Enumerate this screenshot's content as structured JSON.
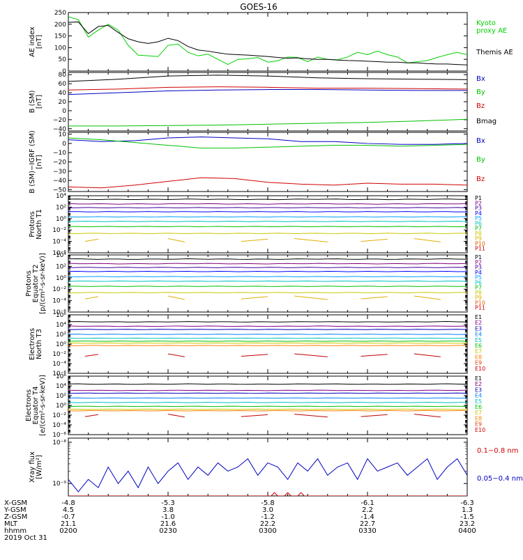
{
  "title": "GOES-16",
  "date_label": "2019 Oct 31",
  "orbit_labels": [
    "X-GSM",
    "Y-GSM",
    "Z-GSM",
    "MLT",
    "hhmm"
  ],
  "orbit_columns": [
    {
      "time": "0200",
      "x": "-4.8",
      "y": "4.5",
      "z": "-0.7",
      "mlt": "21.1"
    },
    {
      "time": "0230",
      "x": "-5.3",
      "y": "3.8",
      "z": "-1.0",
      "mlt": "21.6"
    },
    {
      "time": "0300",
      "x": "-5.8",
      "y": "3.0",
      "z": "-1.2",
      "mlt": "22.2"
    },
    {
      "time": "0330",
      "x": "-6.1",
      "y": "2.2",
      "z": "-1.4",
      "mlt": "22.7"
    },
    {
      "time": "0400",
      "x": "-6.3",
      "y": "1.3",
      "z": "-1.5",
      "mlt": "23.2"
    }
  ],
  "chart_data": [
    {
      "type": "line",
      "id": "ae",
      "ylabel": [
        "AE index",
        "[nT]"
      ],
      "ylim": [
        0,
        250
      ],
      "ticks": [
        {
          "v": 0,
          "label": "0"
        },
        {
          "v": 50,
          "label": "50"
        },
        {
          "v": 100,
          "label": "100"
        },
        {
          "v": 150,
          "label": "150"
        },
        {
          "v": 200,
          "label": "200"
        },
        {
          "v": 250,
          "label": "250"
        }
      ],
      "series": [
        {
          "name": "Kyoto proxy AE",
          "legend": [
            "Kyoto",
            "proxy AE"
          ],
          "color": "#00d000",
          "x": [
            0,
            3,
            6,
            9,
            12,
            15,
            18,
            21,
            24,
            27,
            30,
            33,
            36,
            39,
            42,
            45,
            48,
            51,
            54,
            57,
            60,
            63,
            66,
            69,
            72,
            75,
            78,
            81,
            84,
            87,
            90,
            93,
            96,
            99,
            102,
            105,
            108,
            111,
            114,
            117,
            120
          ],
          "y": [
            232,
            220,
            145,
            175,
            200,
            175,
            110,
            68,
            65,
            62,
            110,
            115,
            80,
            65,
            72,
            50,
            28,
            50,
            52,
            58,
            38,
            44,
            60,
            58,
            40,
            60,
            50,
            48,
            60,
            80,
            70,
            85,
            70,
            60,
            35,
            40,
            45,
            58,
            70,
            80,
            70
          ]
        },
        {
          "name": "Themis AE",
          "legend": [
            "Themis AE"
          ],
          "color": "#000000",
          "x": [
            0,
            3,
            6,
            9,
            12,
            15,
            18,
            21,
            24,
            27,
            30,
            33,
            36,
            39,
            42,
            45,
            48,
            51,
            54,
            57,
            60,
            63,
            66,
            69,
            72,
            75,
            78,
            81,
            84,
            87,
            90,
            93,
            96,
            99,
            102,
            105,
            108,
            111,
            114,
            117,
            120
          ],
          "y": [
            208,
            210,
            160,
            190,
            195,
            165,
            138,
            125,
            118,
            125,
            140,
            130,
            105,
            90,
            85,
            78,
            72,
            70,
            68,
            65,
            62,
            58,
            55,
            56,
            52,
            50,
            50,
            47,
            45,
            44,
            42,
            40,
            38,
            38,
            35,
            35,
            32,
            30,
            30,
            28,
            26
          ]
        }
      ]
    },
    {
      "type": "line",
      "id": "bsm",
      "ylabel": [
        "B (SM)",
        "[nT]"
      ],
      "ylim": [
        -45,
        85
      ],
      "ticks": [
        {
          "v": -40,
          "label": "−40"
        },
        {
          "v": -20,
          "label": "−20"
        },
        {
          "v": 0,
          "label": "0"
        },
        {
          "v": 20,
          "label": "20"
        },
        {
          "v": 40,
          "label": "40"
        },
        {
          "v": 60,
          "label": "60"
        },
        {
          "v": 80,
          "label": "80"
        }
      ],
      "series": [
        {
          "name": "Bx",
          "legend": [
            "Bx"
          ],
          "color": "#0000c0",
          "x": [
            0,
            15,
            30,
            45,
            60,
            75,
            90,
            105,
            120
          ],
          "y": [
            36,
            40,
            44,
            46,
            47,
            47,
            46,
            45,
            45
          ]
        },
        {
          "name": "By",
          "legend": [
            "By"
          ],
          "color": "#00c000",
          "x": [
            0,
            15,
            30,
            45,
            60,
            75,
            90,
            105,
            120
          ],
          "y": [
            -34,
            -34,
            -33,
            -32,
            -30,
            -28,
            -26,
            -23,
            -19
          ]
        },
        {
          "name": "Bz",
          "legend": [
            "Bz"
          ],
          "color": "#d00000",
          "x": [
            0,
            15,
            30,
            45,
            60,
            75,
            90,
            105,
            120
          ],
          "y": [
            46,
            48,
            52,
            53,
            52,
            50,
            50,
            49,
            48
          ]
        },
        {
          "name": "Bmag",
          "legend": [
            "Bmag"
          ],
          "color": "#000000",
          "x": [
            0,
            15,
            30,
            45,
            60,
            75,
            90,
            105,
            120
          ],
          "y": [
            65,
            70,
            77,
            79,
            77,
            73,
            71,
            70,
            69
          ]
        }
      ]
    },
    {
      "type": "line",
      "id": "bigrf",
      "ylabel": [
        "B (SM)−IGRF (SM)",
        "[nT]"
      ],
      "ylim": [
        -52,
        12
      ],
      "ticks": [
        {
          "v": -50,
          "label": "−50"
        },
        {
          "v": -40,
          "label": "−40"
        },
        {
          "v": -30,
          "label": "−30"
        },
        {
          "v": -20,
          "label": "−20"
        },
        {
          "v": -10,
          "label": "−10"
        },
        {
          "v": 0,
          "label": "0"
        },
        {
          "v": 10,
          "label": "10"
        }
      ],
      "series": [
        {
          "name": "Bx",
          "legend": [
            "Bx"
          ],
          "color": "#0000c0",
          "x": [
            0,
            10,
            20,
            30,
            40,
            50,
            60,
            70,
            80,
            90,
            100,
            110,
            120
          ],
          "y": [
            4,
            2,
            3,
            6,
            7,
            6,
            5,
            2,
            2,
            0,
            -1,
            -1,
            0
          ]
        },
        {
          "name": "By",
          "legend": [
            "By"
          ],
          "color": "#00c000",
          "x": [
            0,
            10,
            20,
            30,
            40,
            50,
            60,
            70,
            80,
            90,
            100,
            110,
            120
          ],
          "y": [
            6,
            4,
            1,
            -2,
            -5,
            -5,
            -4,
            -3,
            -2,
            -2,
            -3,
            -2,
            -1
          ]
        },
        {
          "name": "Bz",
          "legend": [
            "Bz"
          ],
          "color": "#d00000",
          "x": [
            0,
            10,
            20,
            30,
            40,
            50,
            60,
            70,
            80,
            90,
            100,
            110,
            120
          ],
          "y": [
            -47,
            -48,
            -45,
            -41,
            -37,
            -38,
            -42,
            -44,
            -45,
            -43,
            -44,
            -44,
            -45
          ]
        }
      ]
    },
    {
      "type": "line",
      "id": "protons_t1",
      "log": true,
      "ylabel": [
        "Protons",
        "North T1"
      ],
      "ylim": [
        -6,
        4
      ],
      "ticks": [
        {
          "v": -6,
          "label": "10⁻⁶"
        },
        {
          "v": -4,
          "label": "10⁻⁴"
        },
        {
          "v": -2,
          "label": "10⁻²"
        },
        {
          "v": 0,
          "label": "10⁰"
        },
        {
          "v": 2,
          "label": "10²"
        },
        {
          "v": 4,
          "label": "10⁴"
        }
      ],
      "legend_labels": [
        "P1",
        "P2",
        "P3",
        "P4",
        "P5",
        "P6",
        "P7",
        "P8",
        "P9",
        "P10",
        "P11"
      ],
      "series": [
        {
          "name": "P1",
          "color": "#000000",
          "level": 3.4
        },
        {
          "name": "P2",
          "color": "#800080",
          "level": 2.6
        },
        {
          "name": "P3",
          "color": "#4000a0",
          "level": 1.9
        },
        {
          "name": "P4",
          "color": "#0000ff",
          "level": 1.2
        },
        {
          "name": "P5",
          "color": "#00a0ff",
          "level": 0.3
        },
        {
          "name": "P6",
          "color": "#00c0c0",
          "level": -0.5
        },
        {
          "name": "P7",
          "color": "#00c000",
          "level": -1.4
        },
        {
          "name": "P8",
          "color": "#c8c800",
          "level": -2.6
        },
        {
          "name": "P9",
          "color": "#e0b000",
          "level": -3.8,
          "sparse": true
        }
      ]
    },
    {
      "type": "line",
      "id": "protons_t2",
      "log": true,
      "ylabel": [
        "Protons",
        "Equator T2",
        "[p/(cm²-s-sr-keV)]"
      ],
      "ylim": [
        -6,
        4
      ],
      "ticks": [
        {
          "v": -6,
          "label": "10⁻⁶"
        },
        {
          "v": -4,
          "label": "10⁻⁴"
        },
        {
          "v": -2,
          "label": "10⁻²"
        },
        {
          "v": 0,
          "label": "10⁰"
        },
        {
          "v": 2,
          "label": "10²"
        },
        {
          "v": 4,
          "label": "10⁴"
        }
      ],
      "legend_labels": [
        "P1",
        "P2",
        "P3",
        "P4",
        "P5",
        "P6",
        "P7",
        "P8",
        "P9",
        "P10",
        "P11"
      ],
      "series": [
        {
          "name": "P1",
          "color": "#000000",
          "level": 3.3
        },
        {
          "name": "P2",
          "color": "#800080",
          "level": 2.5
        },
        {
          "name": "P3",
          "color": "#4000a0",
          "level": 1.8
        },
        {
          "name": "P4",
          "color": "#0000ff",
          "level": 1.1
        },
        {
          "name": "P5",
          "color": "#00a0ff",
          "level": 0.2
        },
        {
          "name": "P6",
          "color": "#00c0c0",
          "level": -0.6
        },
        {
          "name": "P7",
          "color": "#00c000",
          "level": -1.5
        },
        {
          "name": "P8",
          "color": "#c8c800",
          "level": -2.6
        },
        {
          "name": "P9",
          "color": "#e0b000",
          "level": -3.5,
          "sparse": true
        }
      ]
    },
    {
      "type": "line",
      "id": "electrons_t3",
      "log": true,
      "ylabel": [
        "Electrons",
        "North T3"
      ],
      "ylim": [
        -6,
        6
      ],
      "ticks": [
        {
          "v": -6,
          "label": "10⁻⁶"
        },
        {
          "v": -4,
          "label": "10⁻⁴"
        },
        {
          "v": -2,
          "label": "10⁻²"
        },
        {
          "v": 0,
          "label": "10⁰"
        },
        {
          "v": 2,
          "label": "10²"
        },
        {
          "v": 4,
          "label": "10⁴"
        },
        {
          "v": 6,
          "label": "10⁶"
        }
      ],
      "legend_labels": [
        "E1",
        "E2",
        "E3",
        "E4",
        "E5",
        "E6",
        "E7",
        "E8",
        "E9",
        "E10"
      ],
      "series": [
        {
          "name": "E1",
          "color": "#000000",
          "level": 4.6
        },
        {
          "name": "E2",
          "color": "#800080",
          "level": 3.7
        },
        {
          "name": "E3",
          "color": "#0000c0",
          "level": 3.0
        },
        {
          "name": "E4",
          "color": "#0080ff",
          "level": 2.0
        },
        {
          "name": "E5",
          "color": "#00c0c0",
          "level": 1.2
        },
        {
          "name": "E6",
          "color": "#00c000",
          "level": 0.6
        },
        {
          "name": "E7",
          "color": "#c8c800",
          "level": 0.2
        },
        {
          "name": "E8",
          "color": "#ff8000",
          "level": -0.3
        },
        {
          "name": "E9",
          "color": "#c00000",
          "level": -2.3,
          "sparse": true
        }
      ]
    },
    {
      "type": "line",
      "id": "electrons_t4",
      "log": true,
      "ylabel": [
        "Electrons",
        "Equator T4",
        "[e/(cm²-s-sr-keV)]"
      ],
      "ylim": [
        -6,
        6
      ],
      "ticks": [
        {
          "v": -6,
          "label": "10⁻⁶"
        },
        {
          "v": -4,
          "label": "10⁻⁴"
        },
        {
          "v": -2,
          "label": "10⁻²"
        },
        {
          "v": 0,
          "label": "10⁰"
        },
        {
          "v": 2,
          "label": "10²"
        },
        {
          "v": 4,
          "label": "10⁴"
        },
        {
          "v": 6,
          "label": "10⁶"
        }
      ],
      "legend_labels": [
        "E1",
        "E2",
        "E3",
        "E4",
        "E5",
        "E6",
        "E7",
        "E8",
        "E9",
        "E10"
      ],
      "series": [
        {
          "name": "E1",
          "color": "#000000",
          "level": 4.4
        },
        {
          "name": "E2",
          "color": "#800080",
          "level": 3.1
        },
        {
          "name": "E3",
          "color": "#0000c0",
          "level": 2.5
        },
        {
          "name": "E4",
          "color": "#0080ff",
          "level": 1.5
        },
        {
          "name": "E5",
          "color": "#00c0c0",
          "level": 0.6
        },
        {
          "name": "E6",
          "color": "#00c000",
          "level": -0.2
        },
        {
          "name": "E7",
          "color": "#c8c800",
          "level": -0.8
        },
        {
          "name": "E8",
          "color": "#ff8000",
          "level": -1.1
        },
        {
          "name": "E9",
          "color": "#c00000",
          "level": -2.1,
          "sparse": true
        }
      ]
    },
    {
      "type": "line",
      "id": "xray",
      "log": true,
      "ylabel": [
        "Xray flux",
        "[W/m²]"
      ],
      "ylim": [
        -9.3,
        -7.9
      ],
      "ticks": [
        {
          "v": -9,
          "label": "10⁻⁹"
        },
        {
          "v": -8,
          "label": "10⁻⁸"
        }
      ],
      "series": [
        {
          "name": "0.05−0.4 nm",
          "legend": [
            "0.05−0.4 nm"
          ],
          "color": "#0000c0",
          "x": [
            0,
            3,
            6,
            9,
            12,
            15,
            18,
            21,
            24,
            27,
            30,
            33,
            36,
            39,
            42,
            45,
            48,
            51,
            54,
            57,
            60,
            63,
            66,
            69,
            72,
            75,
            78,
            81,
            84,
            87,
            90,
            93,
            96,
            99,
            102,
            105,
            108,
            111,
            114,
            117,
            120
          ],
          "y": [
            -8.9,
            -9.2,
            -8.9,
            -9.1,
            -8.6,
            -9.0,
            -8.7,
            -9.1,
            -8.6,
            -9.0,
            -8.7,
            -8.5,
            -8.9,
            -8.6,
            -8.8,
            -8.5,
            -8.7,
            -8.6,
            -8.4,
            -8.8,
            -8.5,
            -8.6,
            -8.9,
            -8.5,
            -8.7,
            -8.4,
            -8.8,
            -8.6,
            -8.5,
            -8.9,
            -8.4,
            -8.7,
            -8.6,
            -8.5,
            -8.8,
            -8.6,
            -8.4,
            -8.9,
            -8.6,
            -8.4,
            -8.8
          ]
        },
        {
          "name": "0.1−0.8 nm",
          "legend": [
            "0.1−0.8 nm"
          ],
          "color": "#d00000",
          "x": [
            0,
            60,
            61,
            62,
            63,
            64,
            65,
            66,
            67,
            68,
            69,
            70,
            71,
            72,
            73,
            120
          ],
          "y": [
            -9.3,
            -9.3,
            -9.3,
            -9.22,
            -9.3,
            -9.3,
            -9.3,
            -9.22,
            -9.3,
            -9.3,
            -9.3,
            -9.22,
            -9.3,
            -9.3,
            -9.3,
            -9.3
          ]
        }
      ]
    }
  ]
}
